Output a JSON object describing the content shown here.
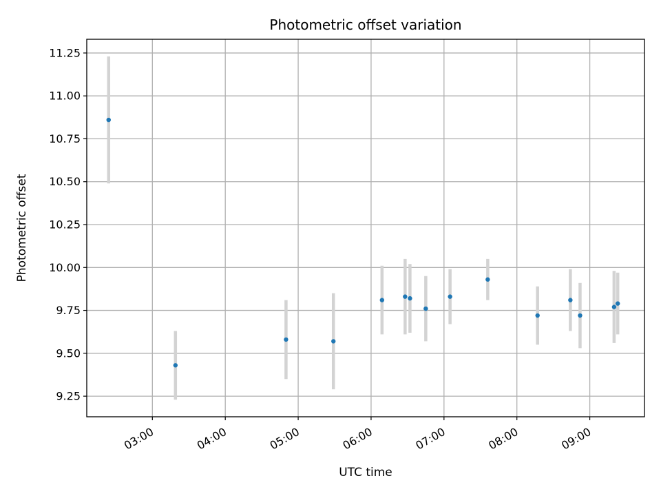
{
  "chart_data": {
    "type": "scatter",
    "title": "Photometric offset variation",
    "xlabel": "UTC time",
    "ylabel": "Photometric offset",
    "x_axis_kind": "time",
    "x_ticks": [
      "03:00",
      "04:00",
      "05:00",
      "06:00",
      "07:00",
      "08:00",
      "09:00"
    ],
    "xlim": [
      "02:06",
      "09:45"
    ],
    "ylim": [
      9.13,
      11.33
    ],
    "y_ticks": [
      9.25,
      9.5,
      9.75,
      10.0,
      10.25,
      10.5,
      10.75,
      11.0,
      11.25
    ],
    "y_tick_labels": [
      "9.25",
      "9.50",
      "9.75",
      "10.00",
      "10.25",
      "10.50",
      "10.75",
      "11.00",
      "11.25"
    ],
    "grid": true,
    "colors": {
      "marker": "#1f77b4",
      "errorbar": "#d3d3d3",
      "grid": "#b0b0b0"
    },
    "points": [
      {
        "x": "02:24",
        "y": 10.86,
        "yerr": 0.37
      },
      {
        "x": "03:19",
        "y": 9.43,
        "yerr": 0.2
      },
      {
        "x": "04:50",
        "y": 9.58,
        "yerr": 0.23
      },
      {
        "x": "05:29",
        "y": 9.57,
        "yerr": 0.28
      },
      {
        "x": "06:09",
        "y": 9.81,
        "yerr": 0.2
      },
      {
        "x": "06:28",
        "y": 9.83,
        "yerr": 0.22
      },
      {
        "x": "06:32",
        "y": 9.82,
        "yerr": 0.2
      },
      {
        "x": "06:45",
        "y": 9.76,
        "yerr": 0.19
      },
      {
        "x": "07:05",
        "y": 9.83,
        "yerr": 0.16
      },
      {
        "x": "07:36",
        "y": 9.93,
        "yerr": 0.12
      },
      {
        "x": "08:17",
        "y": 9.72,
        "yerr": 0.17
      },
      {
        "x": "08:44",
        "y": 9.81,
        "yerr": 0.18
      },
      {
        "x": "08:52",
        "y": 9.72,
        "yerr": 0.19
      },
      {
        "x": "09:20",
        "y": 9.77,
        "yerr": 0.21
      },
      {
        "x": "09:23",
        "y": 9.79,
        "yerr": 0.18
      }
    ]
  }
}
